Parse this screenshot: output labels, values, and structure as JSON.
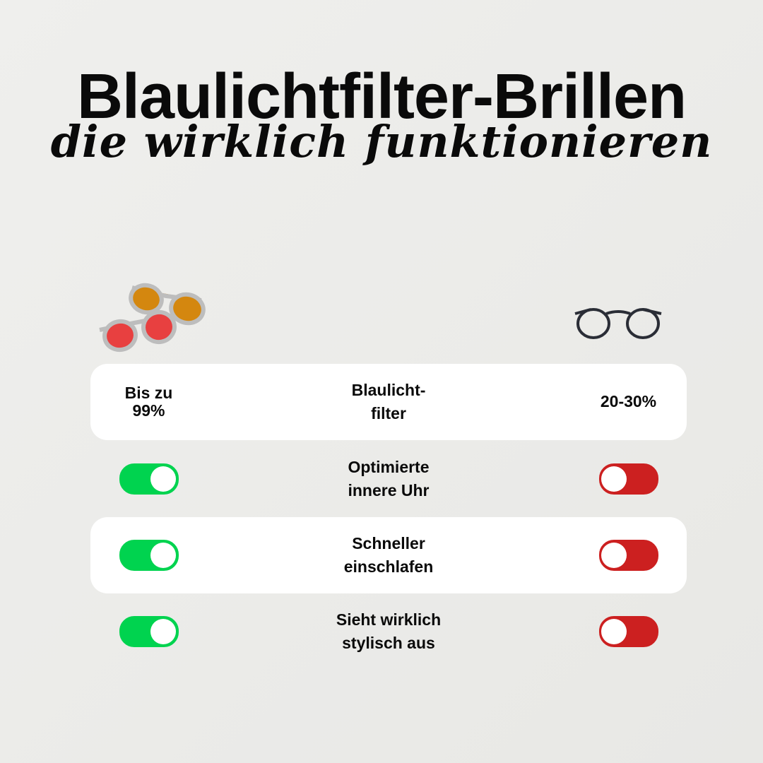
{
  "header": {
    "title": "Blaulichtfilter-Brillen",
    "subtitle": "die wirklich funktionieren"
  },
  "colors": {
    "toggle_on": "#00d34f",
    "toggle_off": "#cc2020",
    "row_bg": "#ffffff"
  },
  "icons": {
    "left": "tinted-glasses-icon",
    "right": "regular-glasses-icon"
  },
  "rows": [
    {
      "feature": "Blaulicht-\nfilter",
      "left": "Bis zu\n99%",
      "right": "20-30%"
    },
    {
      "feature": "Optimierte\ninnere Uhr",
      "left_toggle": true,
      "right_toggle": false
    },
    {
      "feature": "Schneller\neinschlafen",
      "left_toggle": true,
      "right_toggle": false
    },
    {
      "feature": "Sieht wirklich\nstylisch aus",
      "left_toggle": true,
      "right_toggle": false
    }
  ]
}
